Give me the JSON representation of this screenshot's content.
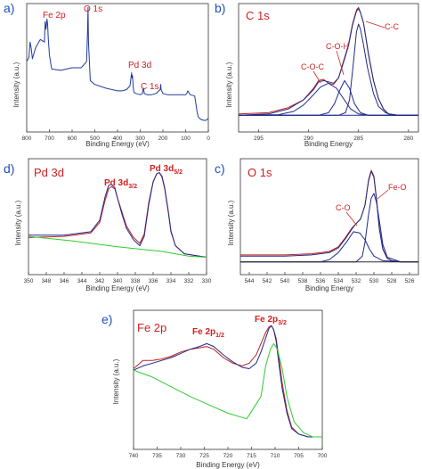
{
  "chart_data": [
    {
      "id": "a",
      "type": "line",
      "panel_label": "a)",
      "xlabel": "Binding Energy (eV)",
      "ylabel": "Intensity (a.u.)",
      "xlim": [
        800,
        0
      ],
      "ylim": [
        0,
        100
      ],
      "xticks": [
        800,
        700,
        600,
        500,
        400,
        300,
        200,
        100,
        0
      ],
      "series": [
        {
          "color": "#1f3a9c",
          "x": [
            800,
            790,
            785,
            780,
            775,
            770,
            760,
            740,
            722,
            719,
            715,
            711,
            708,
            705,
            700,
            690,
            650,
            600,
            560,
            545,
            536,
            532,
            530,
            528,
            520,
            500,
            450,
            400,
            380,
            360,
            345,
            338,
            336,
            334,
            331,
            328,
            320,
            300,
            290,
            288,
            285,
            282,
            270,
            250,
            230,
            212,
            210,
            208,
            200,
            180,
            150,
            120,
            100,
            95,
            90,
            80,
            60,
            55,
            50,
            45,
            35,
            20,
            10,
            5,
            0
          ],
          "y": [
            55,
            58,
            70,
            65,
            57,
            60,
            66,
            72,
            70,
            86,
            80,
            88,
            84,
            73,
            60,
            49,
            48,
            50,
            50,
            53,
            55,
            78,
            97,
            70,
            40,
            37,
            34,
            32,
            32,
            33,
            36,
            46,
            42,
            44,
            35,
            31,
            30,
            29,
            30,
            33,
            34,
            30,
            29,
            29,
            30,
            33,
            37,
            33,
            30,
            29,
            29,
            29,
            29,
            30,
            32,
            29,
            28,
            22,
            16,
            12,
            10,
            9,
            9,
            10,
            10
          ]
        }
      ],
      "annotations": [
        {
          "text": "Fe 2p",
          "x": 722,
          "y": 95
        },
        {
          "text": "O 1s",
          "x": 545,
          "y": 98
        },
        {
          "text": "Pd 3d",
          "x": 340,
          "y": 60
        },
        {
          "text": "C 1s",
          "x": 287,
          "y": 44
        }
      ]
    },
    {
      "id": "b",
      "type": "line",
      "panel_label": "b)",
      "title": "C 1s",
      "xlabel": "Binding Energy",
      "ylabel": "Intensity (a.u.)",
      "xlim": [
        297,
        279
      ],
      "ylim": [
        0,
        100
      ],
      "xticks": [
        295,
        290,
        285,
        280
      ],
      "series": [
        {
          "color": "#c02020",
          "x": [
            297,
            294,
            292,
            290.5,
            289.5,
            289,
            288.5,
            288,
            287.5,
            287,
            286.5,
            286,
            285.6,
            285.2,
            285,
            284.8,
            284.5,
            284,
            283.5,
            283,
            282.5,
            282,
            281,
            279
          ],
          "y": [
            14,
            15,
            19,
            25,
            34,
            40,
            41,
            38,
            37,
            42,
            55,
            68,
            84,
            95,
            97,
            93,
            85,
            60,
            40,
            26,
            18,
            14,
            13,
            13
          ]
        },
        {
          "color": "#1f2a8a",
          "x": [
            297,
            294,
            292,
            290.5,
            289.5,
            289,
            288.5,
            288,
            287.5,
            287,
            286.5,
            286,
            285.6,
            285.2,
            285,
            284.8,
            284.5,
            284,
            283.5,
            283,
            282.5,
            282,
            281,
            279
          ],
          "y": [
            13,
            14,
            18,
            25,
            33,
            39,
            40,
            39,
            38,
            42,
            54,
            67,
            83,
            94,
            96,
            93,
            85,
            61,
            40,
            26,
            18,
            14,
            13,
            13
          ]
        },
        {
          "color": "#1f2a8a",
          "x": [
            297,
            293,
            291.5,
            290.5,
            289.5,
            288.8,
            288,
            287.2,
            286.5,
            285.8,
            285,
            284,
            279
          ],
          "y": [
            13,
            13.5,
            16,
            21,
            29,
            35,
            38,
            34,
            26,
            18,
            14,
            13,
            13
          ]
        },
        {
          "color": "#1f2a8a",
          "x": [
            297,
            289,
            288,
            287.4,
            286.9,
            286.4,
            285.9,
            285.4,
            284.8,
            284,
            279
          ],
          "y": [
            13,
            13,
            15,
            22,
            32,
            40,
            34,
            22,
            15,
            13,
            13
          ]
        },
        {
          "color": "#1f2a8a",
          "x": [
            297,
            287,
            286.3,
            285.9,
            285.5,
            285.2,
            285,
            284.8,
            284.5,
            284.1,
            283.5,
            283,
            282.3,
            281.5,
            279
          ],
          "y": [
            13,
            13,
            15,
            25,
            55,
            78,
            84,
            80,
            68,
            50,
            30,
            20,
            15,
            13,
            13
          ]
        },
        {
          "color": "#1f2a8a",
          "x": [
            297,
            279
          ],
          "y": [
            13,
            13
          ]
        }
      ],
      "annotations": [
        {
          "text": "C-C"
        },
        {
          "text": "C-O-H"
        },
        {
          "text": "C-O-C"
        }
      ]
    },
    {
      "id": "d",
      "type": "line",
      "panel_label": "d)",
      "title": "Pd 3d",
      "xlabel": "Binding Energy (eV)",
      "ylabel": "Intensity (a.u.)",
      "xlim": [
        350,
        330
      ],
      "ylim": [
        0,
        100
      ],
      "xticks": [
        350,
        348,
        346,
        344,
        342,
        340,
        338,
        336,
        334,
        332,
        330
      ],
      "series": [
        {
          "color": "#c02020",
          "x": [
            350,
            346,
            343,
            342,
            341.4,
            341,
            340.7,
            340.3,
            340,
            339.5,
            339,
            338.2,
            337.5,
            337,
            336.5,
            336,
            335.6,
            335.3,
            335,
            334.7,
            334.3,
            334,
            333.5,
            332.5,
            330
          ],
          "y": [
            32,
            33,
            36,
            45,
            64,
            74,
            76,
            74,
            66,
            54,
            42,
            32,
            27,
            35,
            62,
            80,
            87,
            88,
            85,
            75,
            55,
            38,
            25,
            18,
            15
          ]
        },
        {
          "color": "#1f2a8a",
          "x": [
            350,
            346,
            343,
            342,
            341.4,
            341,
            340.7,
            340.3,
            340,
            339.5,
            339,
            338.2,
            337.5,
            337,
            336.5,
            336,
            335.6,
            335.3,
            335,
            334.7,
            334.3,
            334,
            333.5,
            332.5,
            330
          ],
          "y": [
            34,
            34,
            37,
            47,
            67,
            77,
            78,
            75,
            66,
            52,
            40,
            30,
            25,
            33,
            60,
            80,
            87,
            88,
            84,
            74,
            54,
            37,
            25,
            18,
            15
          ]
        },
        {
          "color": "#2ecc2e",
          "x": [
            350,
            345,
            340,
            335,
            332,
            330
          ],
          "y": [
            33,
            29,
            24,
            20,
            16,
            15
          ]
        }
      ],
      "annotations": [
        {
          "text": "Pd 3d",
          "sub": "3/2"
        },
        {
          "text": "Pd 3d",
          "sub": "5/2"
        }
      ]
    },
    {
      "id": "c",
      "type": "line",
      "panel_label": "c)",
      "title": "O 1s",
      "xlabel": "Binding Energy",
      "ylabel": "Intensity (a.u.)",
      "xlim": [
        545,
        525
      ],
      "ylim": [
        0,
        100
      ],
      "xticks": [
        544,
        542,
        540,
        538,
        536,
        534,
        532,
        530,
        528,
        526
      ],
      "series": [
        {
          "color": "#c02020",
          "x": [
            545,
            540,
            537,
            535,
            534,
            533.2,
            532.5,
            532,
            531.5,
            531,
            530.6,
            530.3,
            530,
            529.7,
            529.4,
            529,
            528.5,
            528,
            527,
            525
          ],
          "y": [
            17,
            17,
            18,
            20,
            24,
            32,
            40,
            44,
            48,
            60,
            82,
            90,
            85,
            65,
            40,
            22,
            14,
            12,
            11,
            11
          ]
        },
        {
          "color": "#1f2a8a",
          "x": [
            545,
            540,
            537,
            535,
            534,
            533.2,
            532.5,
            532,
            531.5,
            531,
            530.6,
            530.3,
            530,
            529.7,
            529.4,
            529,
            528.5,
            528,
            527,
            525
          ],
          "y": [
            16,
            16,
            17,
            19,
            23,
            31,
            39,
            44,
            48,
            60,
            81,
            89,
            84,
            64,
            40,
            22,
            14,
            12,
            11,
            11
          ]
        },
        {
          "color": "#1f2a8a",
          "x": [
            545,
            536,
            535,
            534,
            533,
            532.3,
            531.6,
            531,
            530.5,
            530,
            529,
            527,
            525
          ],
          "y": [
            11,
            11,
            13,
            19,
            29,
            37,
            36,
            30,
            22,
            16,
            12,
            11,
            11
          ]
        },
        {
          "color": "#1f2a8a",
          "x": [
            545,
            532,
            531.3,
            531,
            530.6,
            530.3,
            530,
            529.7,
            529.3,
            529,
            528.5,
            527,
            525
          ],
          "y": [
            11,
            11,
            16,
            28,
            52,
            66,
            70,
            62,
            42,
            26,
            15,
            11,
            11
          ]
        },
        {
          "color": "#2a2a2a",
          "x": [
            545,
            525
          ],
          "y": [
            11,
            11
          ]
        }
      ],
      "annotations": [
        {
          "text": "C-O"
        },
        {
          "text": "Fe-O"
        }
      ]
    },
    {
      "id": "e",
      "type": "line",
      "panel_label": "e)",
      "title": "Fe 2p",
      "xlabel": "Binding Energy (eV)",
      "ylabel": "Intensity (a.u.)",
      "xlim": [
        740,
        700
      ],
      "ylim": [
        0,
        100
      ],
      "xticks": [
        740,
        735,
        730,
        725,
        720,
        715,
        710,
        705,
        700
      ],
      "series": [
        {
          "color": "#c02020",
          "x": [
            740,
            738,
            736,
            734,
            732,
            730,
            728,
            726,
            724.5,
            723,
            721,
            719,
            717,
            715.5,
            714,
            713,
            712,
            711.3,
            710.8,
            710.3,
            709.8,
            709.2,
            708.5,
            707.5,
            706.5,
            705,
            703,
            700
          ],
          "y": [
            58,
            64,
            64,
            65,
            67,
            70,
            72,
            73,
            74,
            72,
            66,
            62,
            60,
            62,
            68,
            76,
            84,
            88,
            89,
            86,
            80,
            66,
            48,
            28,
            16,
            11,
            9,
            9
          ]
        },
        {
          "color": "#1f2a8a",
          "x": [
            740,
            738,
            736,
            734,
            732,
            730,
            728,
            726,
            724.5,
            723,
            721,
            719,
            717,
            715.5,
            714,
            713,
            712,
            711.3,
            710.8,
            710.3,
            709.8,
            709.2,
            708.5,
            707.5,
            706.5,
            705,
            703,
            700
          ],
          "y": [
            57,
            60,
            62,
            64,
            66,
            69,
            72,
            74,
            76,
            74,
            68,
            63,
            59,
            58,
            62,
            70,
            80,
            87,
            89,
            86,
            78,
            62,
            44,
            26,
            15,
            11,
            9,
            9
          ]
        },
        {
          "color": "#2ecc2e",
          "x": [
            740,
            736,
            732,
            728,
            724,
            720,
            716,
            713,
            712,
            711,
            710.3,
            709.5,
            708.5,
            707.5,
            706,
            704,
            702,
            700
          ],
          "y": [
            57,
            52,
            45,
            38,
            32,
            26,
            22,
            38,
            60,
            72,
            76,
            72,
            58,
            38,
            20,
            12,
            9,
            9
          ]
        }
      ],
      "annotations": [
        {
          "text": "Fe 2p",
          "sub": "1/2"
        },
        {
          "text": "Fe 2p",
          "sub": "3/2"
        }
      ]
    }
  ]
}
